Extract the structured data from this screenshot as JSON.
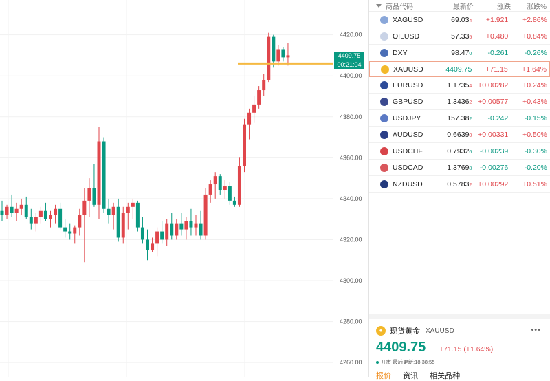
{
  "chart": {
    "price_label": "4409.75",
    "timer_label": "00:21:04",
    "y_ticks": [
      "4420.00",
      "4400.00",
      "4380.00",
      "4360.00",
      "4340.00",
      "4320.00",
      "4300.00",
      "4280.00",
      "4260.00"
    ],
    "y_tick_values": [
      4420,
      4400,
      4380,
      4360,
      4340,
      4320,
      4300,
      4280,
      4260
    ],
    "current_price": 4409.75,
    "line_price": 4406,
    "colors": {
      "up": "#089981",
      "down": "#e0464b",
      "line": "#f5b942",
      "grid": "#f1f1f1"
    }
  },
  "chart_data": {
    "type": "candlestick",
    "candles": [
      [
        4334,
        4339,
        4329,
        4332
      ],
      [
        4332,
        4337,
        4330,
        4336
      ],
      [
        4336,
        4342,
        4331,
        4333
      ],
      [
        4333,
        4338,
        4329,
        4335
      ],
      [
        4335,
        4340,
        4332,
        4337
      ],
      [
        4337,
        4341,
        4330,
        4331
      ],
      [
        4331,
        4335,
        4325,
        4328
      ],
      [
        4328,
        4333,
        4324,
        4331
      ],
      [
        4331,
        4336,
        4328,
        4334
      ],
      [
        4334,
        4338,
        4329,
        4330
      ],
      [
        4330,
        4334,
        4326,
        4332
      ],
      [
        4332,
        4337,
        4328,
        4335
      ],
      [
        4335,
        4338,
        4325,
        4326
      ],
      [
        4326,
        4330,
        4321,
        4324
      ],
      [
        4324,
        4328,
        4320,
        4323
      ],
      [
        4323,
        4327,
        4318,
        4326
      ],
      [
        4326,
        4335,
        4322,
        4332
      ],
      [
        4332,
        4345,
        4309,
        4339
      ],
      [
        4339,
        4350,
        4331,
        4345
      ],
      [
        4345,
        4357,
        4336,
        4337
      ],
      [
        4337,
        4375,
        4330,
        4368
      ],
      [
        4368,
        4370,
        4333,
        4335
      ],
      [
        4335,
        4340,
        4328,
        4332
      ],
      [
        4332,
        4338,
        4325,
        4336
      ],
      [
        4336,
        4340,
        4319,
        4321
      ],
      [
        4321,
        4336,
        4318,
        4333
      ],
      [
        4333,
        4338,
        4325,
        4336
      ],
      [
        4336,
        4340,
        4330,
        4338
      ],
      [
        4338,
        4339,
        4324,
        4326
      ],
      [
        4326,
        4331,
        4318,
        4320
      ],
      [
        4320,
        4325,
        4310,
        4315
      ],
      [
        4315,
        4321,
        4314,
        4318
      ],
      [
        4318,
        4326,
        4312,
        4324
      ],
      [
        4324,
        4329,
        4318,
        4320
      ],
      [
        4320,
        4330,
        4317,
        4328
      ],
      [
        4328,
        4333,
        4320,
        4322
      ],
      [
        4322,
        4330,
        4320,
        4328
      ],
      [
        4328,
        4333,
        4322,
        4325
      ],
      [
        4325,
        4331,
        4320,
        4329
      ],
      [
        4329,
        4335,
        4322,
        4326
      ],
      [
        4326,
        4332,
        4322,
        4328
      ],
      [
        4328,
        4334,
        4320,
        4322
      ],
      [
        4322,
        4345,
        4320,
        4342
      ],
      [
        4342,
        4349,
        4338,
        4347
      ],
      [
        4347,
        4353,
        4340,
        4351
      ],
      [
        4351,
        4352,
        4342,
        4344
      ],
      [
        4344,
        4349,
        4340,
        4346
      ],
      [
        4346,
        4348,
        4337,
        4339
      ],
      [
        4339,
        4341,
        4336,
        4337
      ],
      [
        4337,
        4360,
        4336,
        4356
      ],
      [
        4356,
        4379,
        4353,
        4376
      ],
      [
        4376,
        4384,
        4369,
        4382
      ],
      [
        4382,
        4390,
        4377,
        4386
      ],
      [
        4386,
        4395,
        4384,
        4393
      ],
      [
        4393,
        4401,
        4390,
        4398
      ],
      [
        4398,
        4421,
        4397,
        4419
      ],
      [
        4419,
        4420,
        4404,
        4407
      ],
      [
        4407,
        4415,
        4405,
        4413
      ],
      [
        4413,
        4414,
        4407,
        4409
      ],
      [
        4409,
        4416,
        4405,
        4410
      ]
    ],
    "ylim": [
      4253,
      4437
    ]
  },
  "watchlist": {
    "headers": {
      "symbol": "商品代码",
      "last": "最新价",
      "change": "涨跌",
      "change_pct": "涨跌%"
    },
    "rows": [
      {
        "symbol": "XAGUSD",
        "last_main": "69.03",
        "last_sub": "4",
        "change": "+1.921",
        "change_pct": "+2.86%",
        "dir": "up",
        "flag_color": "#8aa7d9"
      },
      {
        "symbol": "OILUSD",
        "last_main": "57.33",
        "last_sub": "5",
        "change": "+0.480",
        "change_pct": "+0.84%",
        "dir": "up",
        "flag_color": "#c9d3e6"
      },
      {
        "symbol": "DXY",
        "last_main": "98.47",
        "last_sub": "0",
        "change": "-0.261",
        "change_pct": "-0.26%",
        "dir": "down",
        "flag_color": "#4b6fb6"
      },
      {
        "symbol": "XAUUSD",
        "last_main": "4409.75",
        "last_sub": "",
        "change": "+71.15",
        "change_pct": "+1.64%",
        "dir": "up",
        "flag_color": "#f3b82a"
      },
      {
        "symbol": "EURUSD",
        "last_main": "1.1735",
        "last_sub": "4",
        "change": "+0.00282",
        "change_pct": "+0.24%",
        "dir": "up",
        "flag_color": "#2e4c99"
      },
      {
        "symbol": "GBPUSD",
        "last_main": "1.3436",
        "last_sub": "2",
        "change": "+0.00577",
        "change_pct": "+0.43%",
        "dir": "up",
        "flag_color": "#3b4a8f"
      },
      {
        "symbol": "USDJPY",
        "last_main": "157.38",
        "last_sub": "2",
        "change": "-0.242",
        "change_pct": "-0.15%",
        "dir": "down",
        "flag_color": "#5b79c4"
      },
      {
        "symbol": "AUDUSD",
        "last_main": "0.6639",
        "last_sub": "0",
        "change": "+0.00331",
        "change_pct": "+0.50%",
        "dir": "up",
        "flag_color": "#2b3f88"
      },
      {
        "symbol": "USDCHF",
        "last_main": "0.7932",
        "last_sub": "6",
        "change": "-0.00239",
        "change_pct": "-0.30%",
        "dir": "down",
        "flag_color": "#d8454a"
      },
      {
        "symbol": "USDCAD",
        "last_main": "1.3769",
        "last_sub": "8",
        "change": "-0.00276",
        "change_pct": "-0.20%",
        "dir": "down",
        "flag_color": "#d9575c"
      },
      {
        "symbol": "NZDUSD",
        "last_main": "0.5783",
        "last_sub": "2",
        "change": "+0.00292",
        "change_pct": "+0.51%",
        "dir": "up",
        "flag_color": "#233a7d"
      }
    ]
  },
  "detail": {
    "name": "现货黄金",
    "symbol": "XAUUSD",
    "coin_glyph": "●",
    "more": "•••",
    "price": "4409.75",
    "change": "+71.15 (+1.64%)",
    "status": "开市 最后更新:18:38:55",
    "tabs": [
      "报价",
      "资讯",
      "相关品种"
    ]
  }
}
